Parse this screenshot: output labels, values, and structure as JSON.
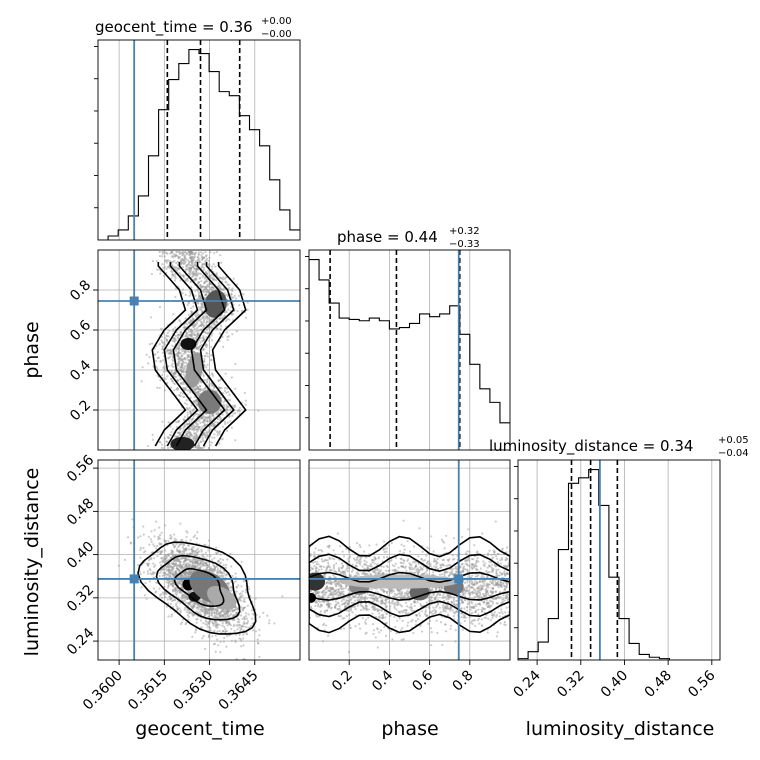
{
  "chart_data": {
    "type": "corner",
    "parameters": [
      "geocent_time",
      "phase",
      "luminosity_distance"
    ],
    "truth_color": "#4682b4",
    "truths": {
      "geocent_time": 0.3605,
      "phase": 0.745,
      "luminosity_distance": 0.355
    },
    "panel_titles": {
      "geocent_time": {
        "text": "geocent_time = 0.36",
        "sup": "+0.00",
        "sub": "−0.00"
      },
      "phase": {
        "text": "phase = 0.44",
        "sup": "+0.32",
        "sub": "−0.33"
      },
      "luminosity_distance": {
        "text": "luminosity_distance = 0.34",
        "sup": "+0.05",
        "sub": "−0.04"
      }
    },
    "axis_labels": {
      "x": [
        "geocent_time",
        "phase",
        "luminosity_distance"
      ],
      "y": [
        "phase",
        "luminosity_distance"
      ]
    },
    "ticks": {
      "geocent_time": [
        "0.3600",
        "0.3615",
        "0.3630",
        "0.3645"
      ],
      "phase": [
        "0.2",
        "0.4",
        "0.6",
        "0.8"
      ],
      "luminosity_distance": [
        "0.24",
        "0.32",
        "0.40",
        "0.48",
        "0.56"
      ]
    },
    "ranges": {
      "geocent_time": [
        0.3593,
        0.366
      ],
      "phase": [
        0.0,
        1.0
      ],
      "luminosity_distance": [
        0.205,
        0.575
      ]
    },
    "quantiles": {
      "geocent_time": [
        0.3616,
        0.3627,
        0.364
      ],
      "phase": [
        0.105,
        0.435,
        0.75
      ],
      "luminosity_distance": [
        0.303,
        0.338,
        0.387
      ]
    },
    "hist_geocent_time": {
      "bin_start": 0.3593,
      "bin_width": 0.000335,
      "counts": [
        0,
        2,
        5,
        12,
        22,
        42,
        65,
        80,
        88,
        95,
        93,
        84,
        74,
        72,
        62,
        55,
        47,
        30,
        15,
        5
      ]
    },
    "hist_phase": {
      "bin_start": 0.0,
      "bin_width": 0.05,
      "counts": [
        140,
        125,
        108,
        97,
        96,
        95,
        97,
        95,
        89,
        90,
        93,
        100,
        98,
        100,
        106,
        85,
        63,
        45,
        35,
        20
      ]
    },
    "hist_luminosity_distance": {
      "bin_start": 0.205,
      "bin_width": 0.0185,
      "counts": [
        1,
        6,
        13,
        30,
        80,
        128,
        132,
        138,
        112,
        60,
        30,
        12,
        4,
        2,
        1,
        0,
        0,
        0,
        0,
        0
      ]
    },
    "joint_phase_vs_geocent_time_ridge": [
      [
        0.02,
        0.3622
      ],
      [
        0.1,
        0.3625
      ],
      [
        0.2,
        0.3632
      ],
      [
        0.3,
        0.3627
      ],
      [
        0.4,
        0.3622
      ],
      [
        0.5,
        0.3621
      ],
      [
        0.6,
        0.3625
      ],
      [
        0.7,
        0.3632
      ],
      [
        0.8,
        0.363
      ],
      [
        0.92,
        0.3623
      ]
    ],
    "joint_ld_vs_geocent_time_center": {
      "geocent_time": 0.3627,
      "luminosity_distance": 0.34,
      "correlation": -0.6
    },
    "joint_ld_vs_phase_center": {
      "phase": 0.5,
      "luminosity_distance": 0.34
    }
  }
}
